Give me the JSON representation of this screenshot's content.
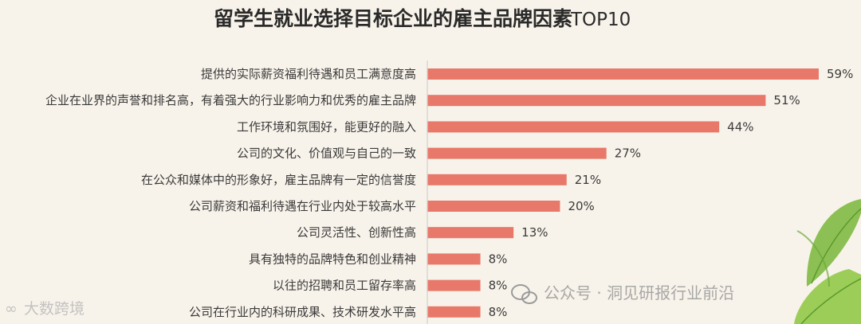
{
  "chart_data": {
    "type": "bar",
    "orientation": "horizontal",
    "title": "留学生就业选择目标企业的雇主品牌因素",
    "title_suffix": "TOP10",
    "categories": [
      "提供的实际薪资福利待遇和员工满意度高",
      "企业在业界的声誉和排名高，有着强大的行业影响力和优秀的雇主品牌",
      "工作环境和氛围好，能更好的融入",
      "公司的文化、价值观与自己的一致",
      "在公众和媒体中的形象好，雇主品牌有一定的信誉度",
      "公司薪资和福利待遇在行业内处于较高水平",
      "公司灵活性、创新性高",
      "具有独特的品牌特色和创业精神",
      "以往的招聘和员工留存率高",
      "公司在行业内的科研成果、技术研发水平高"
    ],
    "values": [
      59,
      51,
      44,
      27,
      21,
      20,
      13,
      8,
      8,
      8
    ],
    "value_labels": [
      "59%",
      "51%",
      "44%",
      "27%",
      "21%",
      "20%",
      "13%",
      "8%",
      "8%",
      "8%"
    ],
    "xlim": [
      0,
      60
    ],
    "grid": false,
    "bar_color": "#e8796a"
  },
  "watermarks": {
    "left": "大数跨境",
    "right": "公众号 · 洞见研报行业前沿"
  },
  "colors": {
    "background": "#f8f3ea",
    "axis": "#cfcfcf",
    "leaf_green": "#8cc63f",
    "leaf_dark": "#5a9a2a"
  }
}
